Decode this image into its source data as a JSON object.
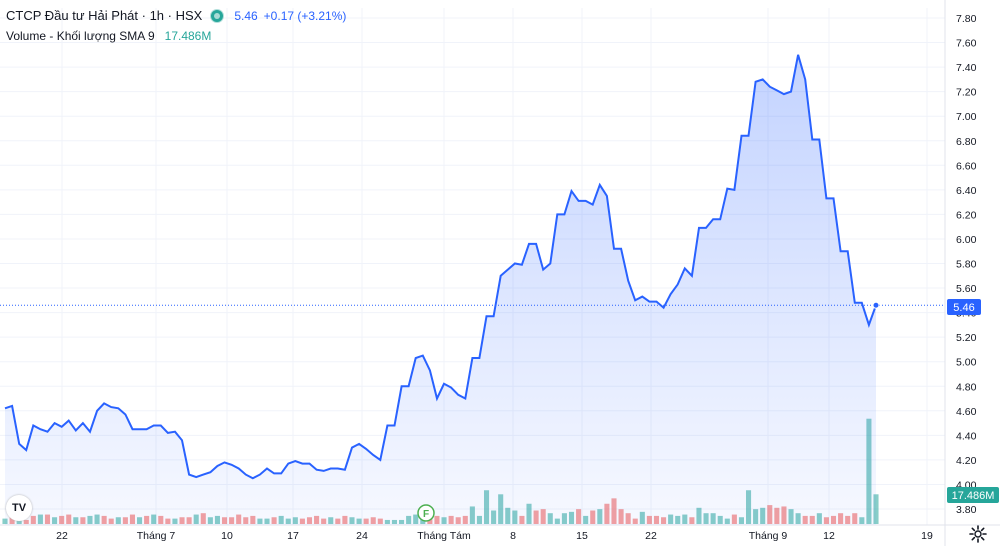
{
  "legend": {
    "symbol": "CTCP Đầu tư Hải Phát · 1h · HSX",
    "price": "5.46",
    "change": "+0.17 (+3.21%)",
    "volume_title": "Volume - Khối lượng SMA 9",
    "volume_value": "17.486M"
  },
  "colors": {
    "line": "#2962ff",
    "area_top": "#c7d2fe",
    "up_volume": "#26a69a",
    "down_volume": "#ef5350",
    "price_label_bg": "#2962ff",
    "volume_label_bg": "#26a69a"
  },
  "price_label": "5.46",
  "volume_label": "17.486M",
  "event_marker": "F",
  "logo": "TV",
  "icons": {
    "settings": "gear-icon",
    "visibility": "eye-icon"
  },
  "chart_data": {
    "type": "area",
    "x_ticks": [
      "22",
      "Tháng 7",
      "10",
      "17",
      "24",
      "Tháng Tám",
      "8",
      "15",
      "22",
      "Tháng 9",
      "12",
      "19"
    ],
    "y_ticks": [
      "7.80",
      "7.60",
      "7.40",
      "7.20",
      "7.00",
      "6.80",
      "6.60",
      "6.40",
      "6.20",
      "6.00",
      "5.80",
      "5.60",
      "5.40",
      "5.20",
      "5.00",
      "4.80",
      "4.60",
      "4.40",
      "4.20",
      "4.00",
      "3.80"
    ],
    "ylim": [
      3.75,
      7.95
    ],
    "last_value": 5.46,
    "grid": true,
    "series": [
      {
        "values": [
          4.62,
          4.64,
          4.33,
          4.28,
          4.48,
          4.45,
          4.43,
          4.5,
          4.47,
          4.52,
          4.44,
          4.5,
          4.43,
          4.6,
          4.66,
          4.63,
          4.62,
          4.57,
          4.45,
          4.45,
          4.45,
          4.48,
          4.48,
          4.42,
          4.43,
          4.36,
          4.08,
          4.06,
          4.08,
          4.1,
          4.15,
          4.18,
          4.16,
          4.13,
          4.08,
          4.05,
          4.08,
          4.13,
          4.09,
          4.09,
          4.17,
          4.19,
          4.17,
          4.17,
          4.12,
          4.11,
          4.13,
          4.13,
          4.12,
          4.3,
          4.33,
          4.29,
          4.24,
          4.2,
          4.48,
          4.48,
          4.8,
          4.8,
          5.03,
          5.05,
          4.93,
          4.7,
          4.82,
          4.79,
          4.73,
          4.7,
          5.03,
          5.03,
          5.37,
          5.37,
          5.7,
          5.75,
          5.8,
          5.79,
          5.96,
          5.96,
          5.75,
          5.8,
          6.2,
          6.2,
          6.39,
          6.31,
          6.31,
          6.28,
          6.44,
          6.35,
          5.92,
          5.92,
          5.66,
          5.5,
          5.53,
          5.49,
          5.49,
          5.44,
          5.55,
          5.63,
          5.76,
          5.7,
          6.09,
          6.09,
          6.16,
          6.16,
          6.41,
          6.4,
          6.84,
          6.84,
          7.28,
          7.3,
          7.24,
          7.21,
          7.18,
          7.2,
          7.5,
          7.3,
          6.81,
          6.81,
          6.33,
          6.33,
          5.9,
          5.9,
          5.48,
          5.48,
          5.3,
          5.46
        ]
      }
    ],
    "volume": {
      "ylim": [
        0,
        1
      ],
      "values": [
        0.04,
        0.05,
        0.03,
        0.03,
        0.06,
        0.07,
        0.07,
        0.05,
        0.06,
        0.07,
        0.05,
        0.05,
        0.06,
        0.07,
        0.06,
        0.04,
        0.05,
        0.05,
        0.07,
        0.05,
        0.06,
        0.07,
        0.06,
        0.04,
        0.04,
        0.05,
        0.05,
        0.07,
        0.08,
        0.05,
        0.06,
        0.05,
        0.05,
        0.07,
        0.05,
        0.06,
        0.04,
        0.04,
        0.05,
        0.06,
        0.04,
        0.05,
        0.04,
        0.05,
        0.06,
        0.04,
        0.05,
        0.04,
        0.06,
        0.05,
        0.04,
        0.04,
        0.05,
        0.04,
        0.03,
        0.03,
        0.03,
        0.06,
        0.07,
        0.08,
        0.08,
        0.06,
        0.05,
        0.06,
        0.05,
        0.06,
        0.13,
        0.06,
        0.25,
        0.1,
        0.22,
        0.12,
        0.1,
        0.06,
        0.15,
        0.1,
        0.11,
        0.08,
        0.04,
        0.08,
        0.09,
        0.11,
        0.06,
        0.1,
        0.11,
        0.15,
        0.19,
        0.11,
        0.08,
        0.04,
        0.09,
        0.06,
        0.06,
        0.05,
        0.07,
        0.06,
        0.07,
        0.05,
        0.12,
        0.08,
        0.08,
        0.06,
        0.04,
        0.07,
        0.05,
        0.25,
        0.11,
        0.12,
        0.14,
        0.12,
        0.13,
        0.11,
        0.08,
        0.06,
        0.06,
        0.08,
        0.05,
        0.06,
        0.08,
        0.06,
        0.08,
        0.05,
        0.78,
        0.22
      ],
      "up": [
        true,
        false,
        true,
        false,
        false,
        true,
        false,
        true,
        false,
        false,
        true,
        false,
        true,
        true,
        false,
        false,
        true,
        false,
        false,
        true,
        false,
        true,
        false,
        false,
        true,
        false,
        false,
        true,
        false,
        true,
        true,
        false,
        false,
        false,
        false,
        false,
        true,
        true,
        false,
        true,
        true,
        true,
        false,
        false,
        false,
        false,
        true,
        false,
        false,
        true,
        true,
        false,
        false,
        false,
        true,
        true,
        true,
        true,
        true,
        true,
        false,
        false,
        true,
        false,
        false,
        false,
        true,
        true,
        true,
        true,
        true,
        true,
        true,
        false,
        true,
        false,
        false,
        true,
        true,
        true,
        true,
        false,
        true,
        false,
        true,
        false,
        false,
        false,
        false,
        false,
        true,
        false,
        false,
        false,
        true,
        true,
        true,
        false,
        true,
        true,
        true,
        true,
        true,
        false,
        true,
        true,
        true,
        true,
        false,
        false,
        false,
        true,
        true,
        false,
        false,
        true,
        false,
        false,
        false,
        false,
        false,
        true,
        true,
        true
      ]
    }
  }
}
